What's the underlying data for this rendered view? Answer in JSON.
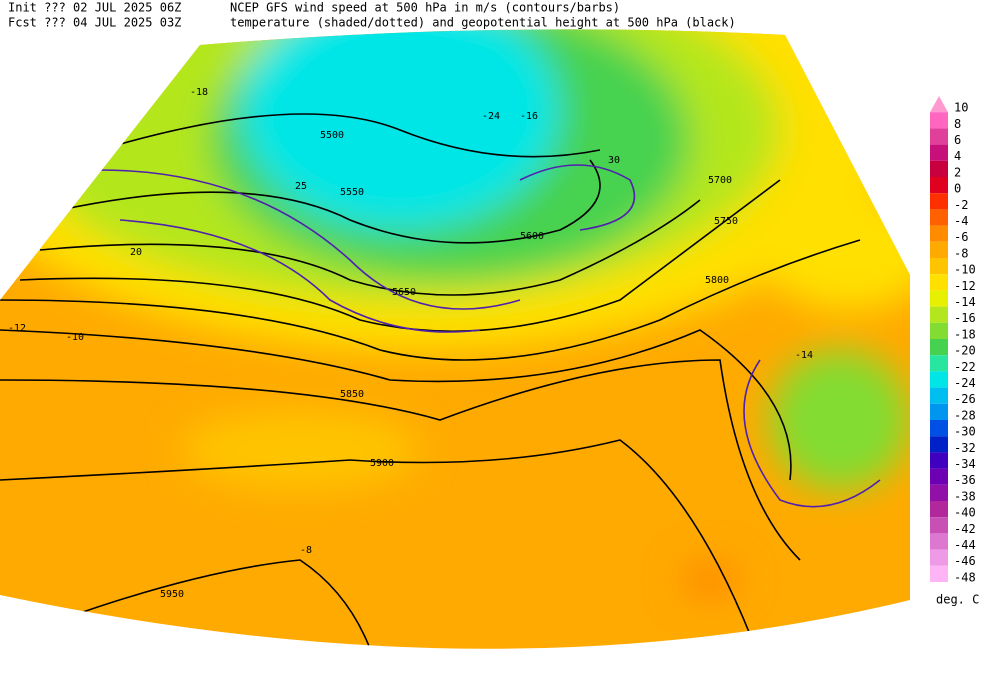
{
  "header": {
    "init": "Init  ??? 02 JUL 2025 06Z",
    "fcst": "Fcst ??? 04 JUL 2025 03Z",
    "title": "NCEP GFS wind speed at 500 hPa in m/s (contours/barbs)",
    "subtitle": "temperature (shaded/dotted) and geopotential height at 500 hPa (black)"
  },
  "map": {
    "height_labels": [
      "5500",
      "5550",
      "5600",
      "5650",
      "5700",
      "5750",
      "5800",
      "5850",
      "5900",
      "5950"
    ],
    "temperature_labels": [
      "-10",
      "-12",
      "-8",
      "-14",
      "-16",
      "-18",
      "-24"
    ],
    "wind_labels": [
      "20",
      "25",
      "30"
    ]
  },
  "colorbar": {
    "unit": "deg. C",
    "labels": [
      10,
      8,
      6,
      4,
      2,
      0,
      -2,
      -4,
      -6,
      -8,
      -10,
      -12,
      -14,
      -16,
      -18,
      -20,
      -22,
      -24,
      -26,
      -28,
      -30,
      -32,
      -34,
      -36,
      -38,
      -40,
      -42,
      -44,
      -46,
      -48
    ],
    "colors": [
      "#ff9ad0",
      "#ff66c0",
      "#e0409a",
      "#c8107a",
      "#c80040",
      "#e00020",
      "#ff3000",
      "#ff6000",
      "#ff8c00",
      "#ffaa00",
      "#ffc400",
      "#ffe000",
      "#e6f000",
      "#b4e61e",
      "#82dc32",
      "#46d250",
      "#28e6a0",
      "#00e6e6",
      "#00bef0",
      "#0096f0",
      "#0050e6",
      "#0020c8",
      "#4000c0",
      "#6e00b4",
      "#9010a8",
      "#b0289c",
      "#c850b4",
      "#dc78d0",
      "#ee9ae6",
      "#ffb4f5"
    ]
  }
}
